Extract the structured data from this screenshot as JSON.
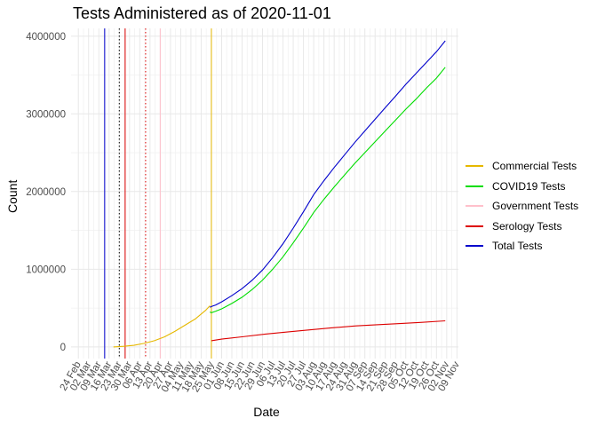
{
  "chart_data": {
    "type": "line",
    "title": "Tests Administered as of 2020-11-01",
    "xlabel": "Date",
    "ylabel": "Count",
    "ylim": [
      -150000,
      4100000
    ],
    "xlim": [
      "2020-02-19",
      "2020-11-10"
    ],
    "y_ticks": [
      0,
      1000000,
      2000000,
      3000000,
      4000000
    ],
    "y_tick_labels": [
      "0",
      "1000000",
      "2000000",
      "3000000",
      "4000000"
    ],
    "x_ticks": [
      "2020-02-24",
      "2020-03-02",
      "2020-03-09",
      "2020-03-16",
      "2020-03-23",
      "2020-03-30",
      "2020-04-06",
      "2020-04-13",
      "2020-04-20",
      "2020-04-27",
      "2020-05-04",
      "2020-05-11",
      "2020-05-18",
      "2020-05-25",
      "2020-06-01",
      "2020-06-08",
      "2020-06-15",
      "2020-06-22",
      "2020-06-29",
      "2020-07-06",
      "2020-07-13",
      "2020-07-20",
      "2020-07-27",
      "2020-08-03",
      "2020-08-10",
      "2020-08-17",
      "2020-08-24",
      "2020-08-31",
      "2020-09-07",
      "2020-09-14",
      "2020-09-21",
      "2020-09-28",
      "2020-10-05",
      "2020-10-12",
      "2020-10-19",
      "2020-10-26",
      "2020-11-02",
      "2020-11-09"
    ],
    "x_tick_labels": [
      "24 Feb",
      "02 Mar",
      "09 Mar",
      "16 Mar",
      "23 Mar",
      "30 Mar",
      "06 Apr",
      "13 Apr",
      "20 Apr",
      "27 Apr",
      "04 May",
      "11 May",
      "18 May",
      "25 May",
      "01 Jun",
      "08 Jun",
      "15 Jun",
      "22 Jun",
      "29 Jun",
      "06 Jul",
      "13 Jul",
      "20 Jul",
      "27 Jul",
      "03 Aug",
      "10 Aug",
      "17 Aug",
      "24 Aug",
      "31 Aug",
      "07 Sep",
      "14 Sep",
      "21 Sep",
      "28 Sep",
      "05 Oct",
      "12 Oct",
      "19 Oct",
      "26 Oct",
      "02 Nov",
      "09 Nov"
    ],
    "grid": true,
    "legend_position": "right",
    "series": [
      {
        "name": "Commercial Tests",
        "color": "#e6b800",
        "x": [
          "2020-03-19",
          "2020-03-26",
          "2020-04-02",
          "2020-04-09",
          "2020-04-16",
          "2020-04-23",
          "2020-04-30",
          "2020-05-07",
          "2020-05-14",
          "2020-05-21",
          "2020-05-24"
        ],
        "y": [
          0,
          8000,
          20000,
          45000,
          80000,
          130000,
          200000,
          280000,
          360000,
          470000,
          530000
        ]
      },
      {
        "name": "COVID19 Tests",
        "color": "#00dd00",
        "x": [
          "2020-05-24",
          "2020-05-25",
          "2020-05-28",
          "2020-06-01",
          "2020-06-08",
          "2020-06-15",
          "2020-06-22",
          "2020-06-29",
          "2020-07-06",
          "2020-07-13",
          "2020-07-20",
          "2020-07-27",
          "2020-08-03",
          "2020-08-10",
          "2020-08-17",
          "2020-08-24",
          "2020-08-31",
          "2020-09-07",
          "2020-09-14",
          "2020-09-21",
          "2020-09-28",
          "2020-10-05",
          "2020-10-12",
          "2020-10-19",
          "2020-10-26",
          "2020-11-01"
        ],
        "y": [
          450000,
          440000,
          460000,
          490000,
          560000,
          640000,
          740000,
          860000,
          1000000,
          1160000,
          1340000,
          1530000,
          1730000,
          1900000,
          2060000,
          2210000,
          2360000,
          2500000,
          2640000,
          2780000,
          2920000,
          3060000,
          3190000,
          3330000,
          3460000,
          3600000
        ]
      },
      {
        "name": "Government Tests",
        "color": "#ffc0cb",
        "x": [],
        "y": []
      },
      {
        "name": "Serology Tests",
        "color": "#dd0000",
        "x": [
          "2020-05-25",
          "2020-06-01",
          "2020-06-15",
          "2020-07-01",
          "2020-07-15",
          "2020-08-01",
          "2020-08-15",
          "2020-09-01",
          "2020-09-15",
          "2020-10-01",
          "2020-10-15",
          "2020-11-01"
        ],
        "y": [
          80000,
          100000,
          130000,
          165000,
          190000,
          220000,
          245000,
          270000,
          285000,
          300000,
          315000,
          335000
        ]
      },
      {
        "name": "Total Tests",
        "color": "#0000cc",
        "x": [
          "2020-05-24",
          "2020-05-25",
          "2020-05-28",
          "2020-06-01",
          "2020-06-08",
          "2020-06-15",
          "2020-06-22",
          "2020-06-29",
          "2020-07-06",
          "2020-07-13",
          "2020-07-20",
          "2020-07-27",
          "2020-08-03",
          "2020-08-10",
          "2020-08-17",
          "2020-08-24",
          "2020-08-31",
          "2020-09-07",
          "2020-09-14",
          "2020-09-21",
          "2020-09-28",
          "2020-10-05",
          "2020-10-12",
          "2020-10-19",
          "2020-10-26",
          "2020-11-01"
        ],
        "y": [
          510000,
          520000,
          540000,
          580000,
          660000,
          750000,
          860000,
          990000,
          1150000,
          1330000,
          1530000,
          1740000,
          1960000,
          2140000,
          2310000,
          2470000,
          2630000,
          2780000,
          2930000,
          3080000,
          3230000,
          3380000,
          3520000,
          3660000,
          3800000,
          3940000
        ]
      }
    ],
    "vertical_lines": [
      {
        "x": "2020-03-13",
        "color": "#0000cc",
        "style": "solid"
      },
      {
        "x": "2020-03-23",
        "color": "#000000",
        "style": "dotted"
      },
      {
        "x": "2020-03-27",
        "color": "#dd0000",
        "style": "solid"
      },
      {
        "x": "2020-04-10",
        "color": "#dd0000",
        "style": "dotted"
      },
      {
        "x": "2020-04-20",
        "color": "#ffc0cb",
        "style": "solid"
      },
      {
        "x": "2020-05-25",
        "color": "#e6b800",
        "style": "solid"
      }
    ]
  }
}
